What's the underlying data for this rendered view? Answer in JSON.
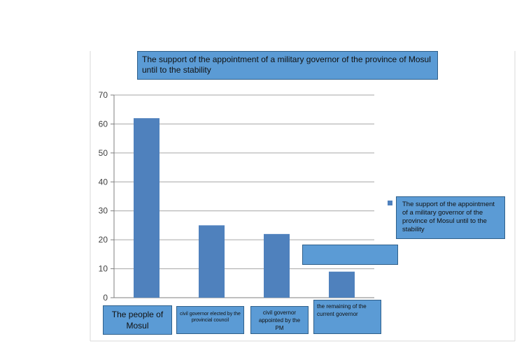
{
  "chart_data": {
    "type": "bar",
    "title": "The support of the appointment of a military governor of the province of Mosul until to the stability",
    "categories": [
      "The people of Mosul",
      "civil governor elected by the provincial council",
      "civil governor appointed by the PM",
      "the remaining of the current governor"
    ],
    "series": [
      {
        "name": "The support of the appointment of a military governor of the province of Mosul until to the stability",
        "values": [
          62,
          25,
          22,
          9
        ]
      }
    ],
    "ylim": [
      0,
      70
    ],
    "yticks": [
      0,
      10,
      20,
      30,
      40,
      50,
      60,
      70
    ],
    "xlabel": "",
    "ylabel": "",
    "grid": true,
    "legend": "right",
    "colors": {
      "bar": "#4f81bd",
      "box_fill": "#5b9bd5",
      "box_border": "#2e5f8a",
      "grid": "#a6a6a6"
    }
  }
}
